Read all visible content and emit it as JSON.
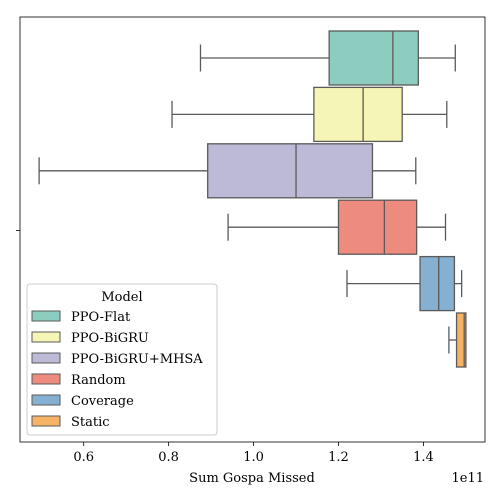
{
  "chart_data": {
    "type": "boxplot",
    "orientation": "horizontal",
    "xlabel": "Sum Gospa Missed",
    "x_offset_label": "1e11",
    "x_scale_exponent": 11,
    "xlim": [
      0.45,
      1.545
    ],
    "x_ticks": [
      0.6,
      0.8,
      1.0,
      1.2,
      1.4
    ],
    "x_tick_labels": [
      "0.6",
      "0.8",
      "1.0",
      "1.2",
      "1.4"
    ],
    "y_ticks": [
      ""
    ],
    "legend": {
      "title": "Model",
      "position": "lower-left",
      "entries": [
        "PPO-Flat",
        "PPO-BiGRU",
        "PPO-BiGRU+MHSA",
        "Random",
        "Coverage",
        "Static"
      ]
    },
    "series": [
      {
        "name": "PPO-Flat",
        "color": "#8dcdc0",
        "whisker_low": 0.875,
        "q1": 1.178,
        "median": 1.328,
        "q3": 1.388,
        "whisker_high": 1.475
      },
      {
        "name": "PPO-BiGRU",
        "color": "#f5f5b5",
        "whisker_low": 0.808,
        "q1": 1.142,
        "median": 1.258,
        "q3": 1.35,
        "whisker_high": 1.455
      },
      {
        "name": "PPO-BiGRU+MHSA",
        "color": "#bdbad7",
        "whisker_low": 0.495,
        "q1": 0.892,
        "median": 1.1,
        "q3": 1.28,
        "whisker_high": 1.382
      },
      {
        "name": "Random",
        "color": "#ed8b7e",
        "whisker_low": 0.94,
        "q1": 1.2,
        "median": 1.308,
        "q3": 1.384,
        "whisker_high": 1.452
      },
      {
        "name": "Coverage",
        "color": "#86b0d2",
        "whisker_low": 1.22,
        "q1": 1.392,
        "median": 1.436,
        "q3": 1.473,
        "whisker_high": 1.49
      },
      {
        "name": "Static",
        "color": "#f6b365",
        "whisker_low": 1.46,
        "q1": 1.478,
        "median": 1.496,
        "q3": 1.5,
        "whisker_high": 1.5
      }
    ]
  }
}
